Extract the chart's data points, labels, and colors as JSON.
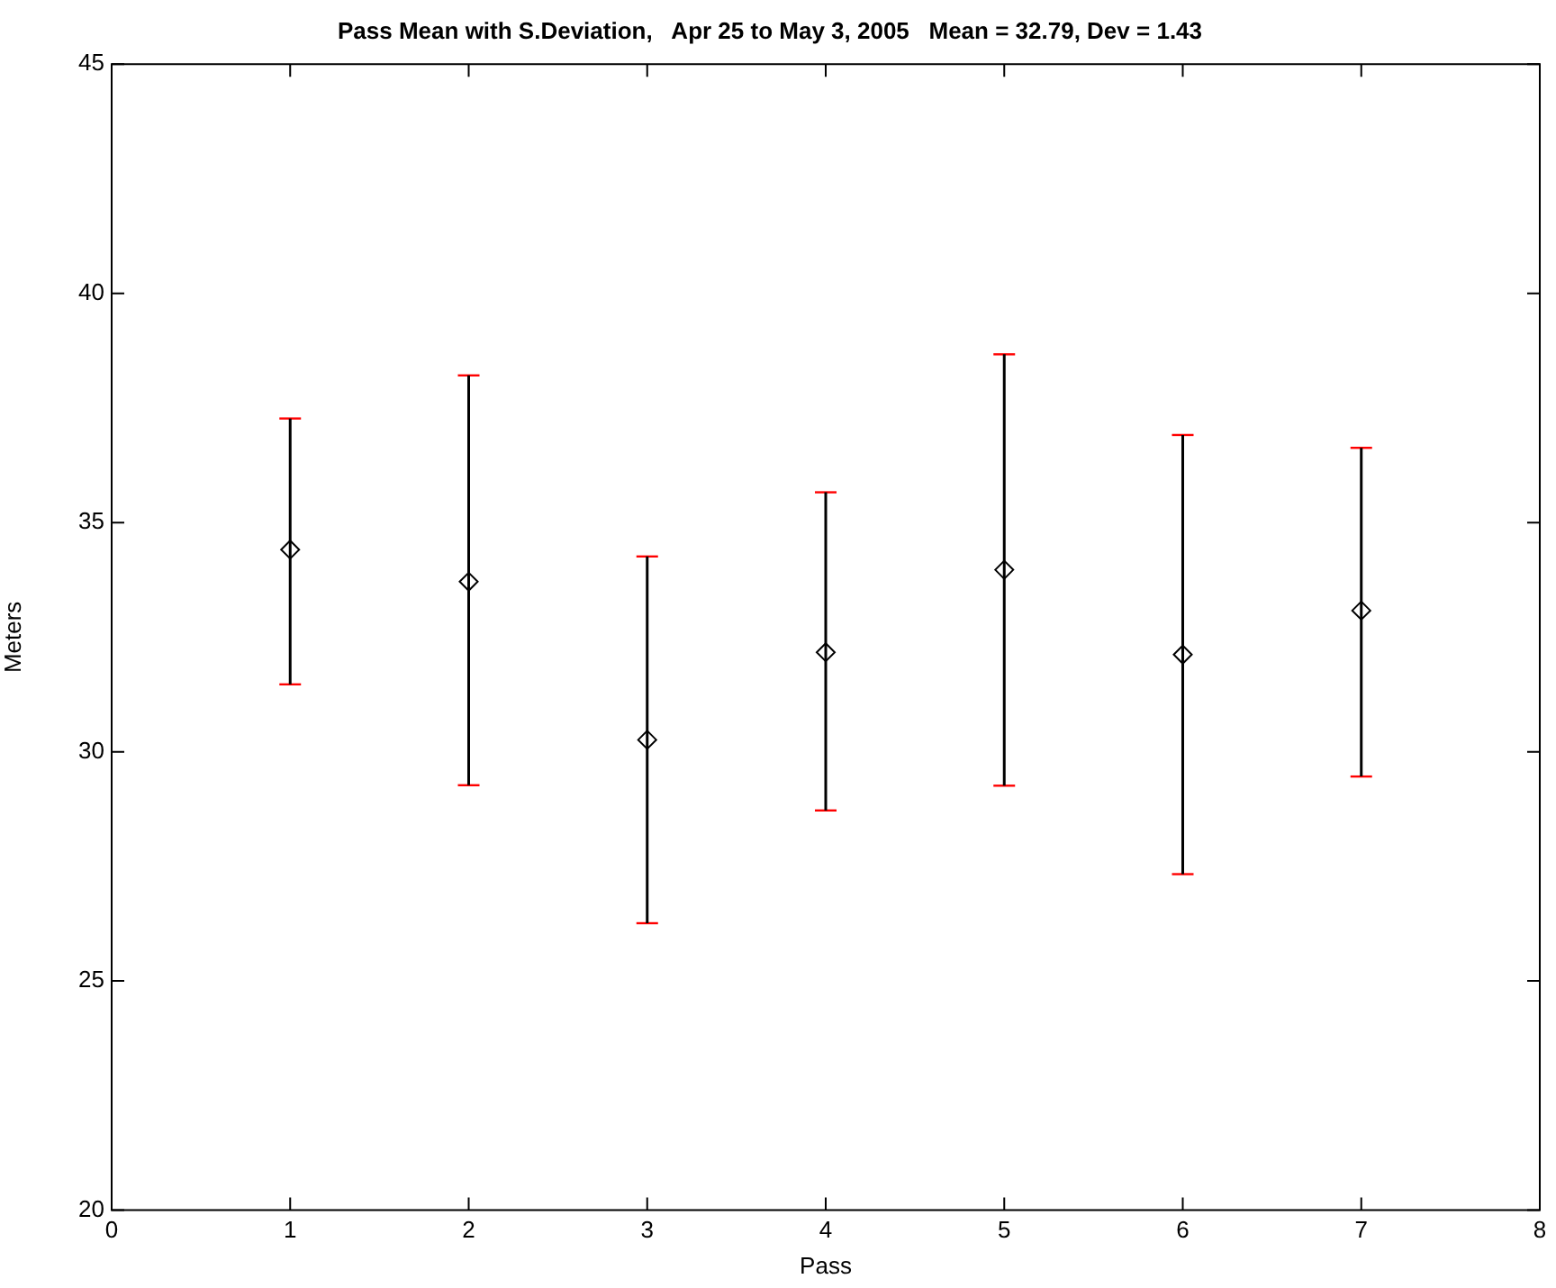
{
  "chart_data": {
    "type": "scatter",
    "title": "Pass Mean with S.Deviation,   Apr 25 to May 3, 2005   Mean = 32.79, Dev = 1.43",
    "xlabel": "Pass",
    "ylabel": "Meters",
    "x": [
      1,
      2,
      3,
      4,
      5,
      6,
      7
    ],
    "values": [
      34.41,
      33.71,
      30.26,
      32.17,
      33.97,
      32.12,
      33.08
    ],
    "errors": [
      [
        31.47,
        37.27
      ],
      [
        29.27,
        38.21
      ],
      [
        26.26,
        34.26
      ],
      [
        28.72,
        35.66
      ],
      [
        29.26,
        38.67
      ],
      [
        27.33,
        36.91
      ],
      [
        29.46,
        36.63
      ]
    ],
    "color": "#000000",
    "marker": "diamond",
    "xlim": [
      0,
      8
    ],
    "xticks": [
      0,
      1,
      2,
      3,
      4,
      5,
      6,
      7,
      8
    ],
    "ylim": [
      20,
      45
    ],
    "yticks": [
      20,
      25,
      30,
      35,
      40,
      45
    ],
    "grid": false,
    "legend": false
  }
}
